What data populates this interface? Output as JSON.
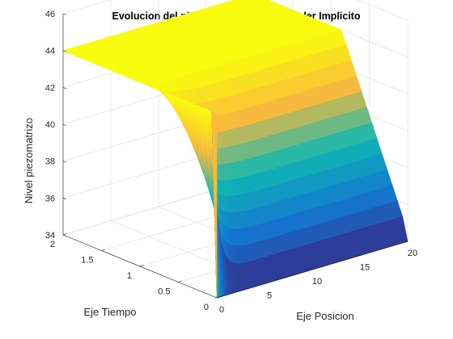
{
  "chart_data": {
    "type": "surface",
    "title": "Evolucion del nivel piezometrico por Euler Implicito",
    "xlabel": "Eje Posicion",
    "ylabel": "Eje Tiempo",
    "zlabel": "Nivel piezomatrizo",
    "xlim": [
      0,
      20
    ],
    "ylim": [
      0,
      2
    ],
    "zlim": [
      34,
      46
    ],
    "xticks": [
      0,
      5,
      10,
      15,
      20
    ],
    "yticks": [
      0,
      0.5,
      1,
      1.5,
      2
    ],
    "zticks": [
      34,
      36,
      38,
      40,
      42,
      44,
      46
    ],
    "grid": true,
    "colormap": "parula",
    "boundary_value": 44,
    "initial_value": 34,
    "description_values": {
      "time_t0_level": 34,
      "time_t0_edge_level": 44,
      "steady_level": 44
    }
  },
  "colors": {
    "low": "#352a87",
    "mid": "#0fb8b2",
    "high": "#f9fb0e"
  }
}
